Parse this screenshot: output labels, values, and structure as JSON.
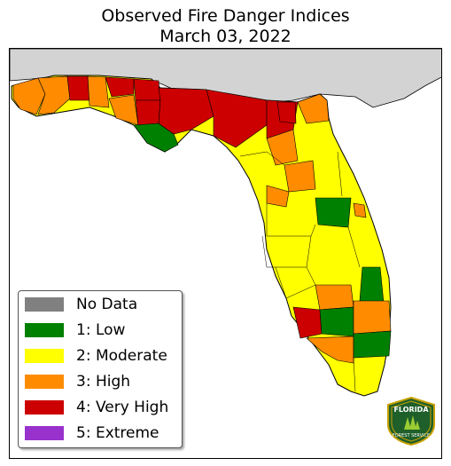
{
  "title": {
    "line1": "Observed Fire Danger Indices",
    "line2": "March 03, 2022"
  },
  "legend": [
    {
      "label": "No Data",
      "color": "#808080"
    },
    {
      "label": "1: Low",
      "color": "#008000"
    },
    {
      "label": "2: Moderate",
      "color": "#ffff00"
    },
    {
      "label": "3: High",
      "color": "#ff8c00"
    },
    {
      "label": "4: Very High",
      "color": "#cc0000"
    },
    {
      "label": "5: Extreme",
      "color": "#9932cc"
    }
  ],
  "map": {
    "neighbor_color": "#d3d3d3",
    "ocean_color": "#ffffff",
    "border_color": "#000000"
  },
  "logo": {
    "line1": "FLORIDA",
    "line2": "FOREST SERVICE"
  }
}
